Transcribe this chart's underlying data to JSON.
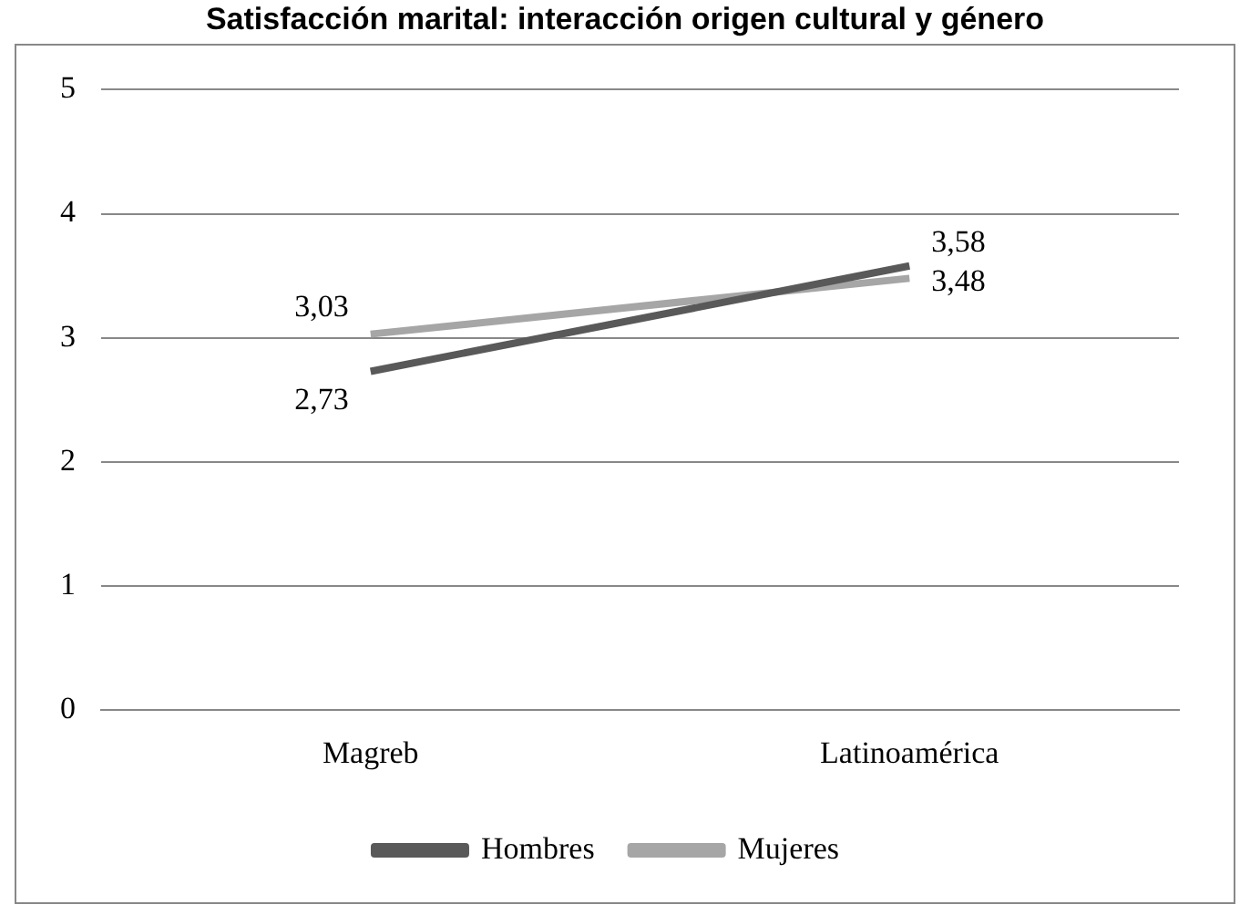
{
  "chart_data": {
    "type": "line",
    "title": "Satisfacción marital: interacción origen cultural y género",
    "categories": [
      "Magreb",
      "Latinoamérica"
    ],
    "series": [
      {
        "name": "Hombres",
        "color": "#595959",
        "values": [
          2.73,
          3.58
        ],
        "value_labels": [
          "2,73",
          "3,58"
        ]
      },
      {
        "name": "Mujeres",
        "color": "#a6a6a6",
        "values": [
          3.03,
          3.48
        ],
        "value_labels": [
          "3,03",
          "3,48"
        ]
      }
    ],
    "ylim": [
      0,
      5
    ],
    "yticks": [
      0,
      1,
      2,
      3,
      4,
      5
    ],
    "grid": "y",
    "legend": "bottom",
    "marker": "none",
    "line_style": "solid"
  }
}
